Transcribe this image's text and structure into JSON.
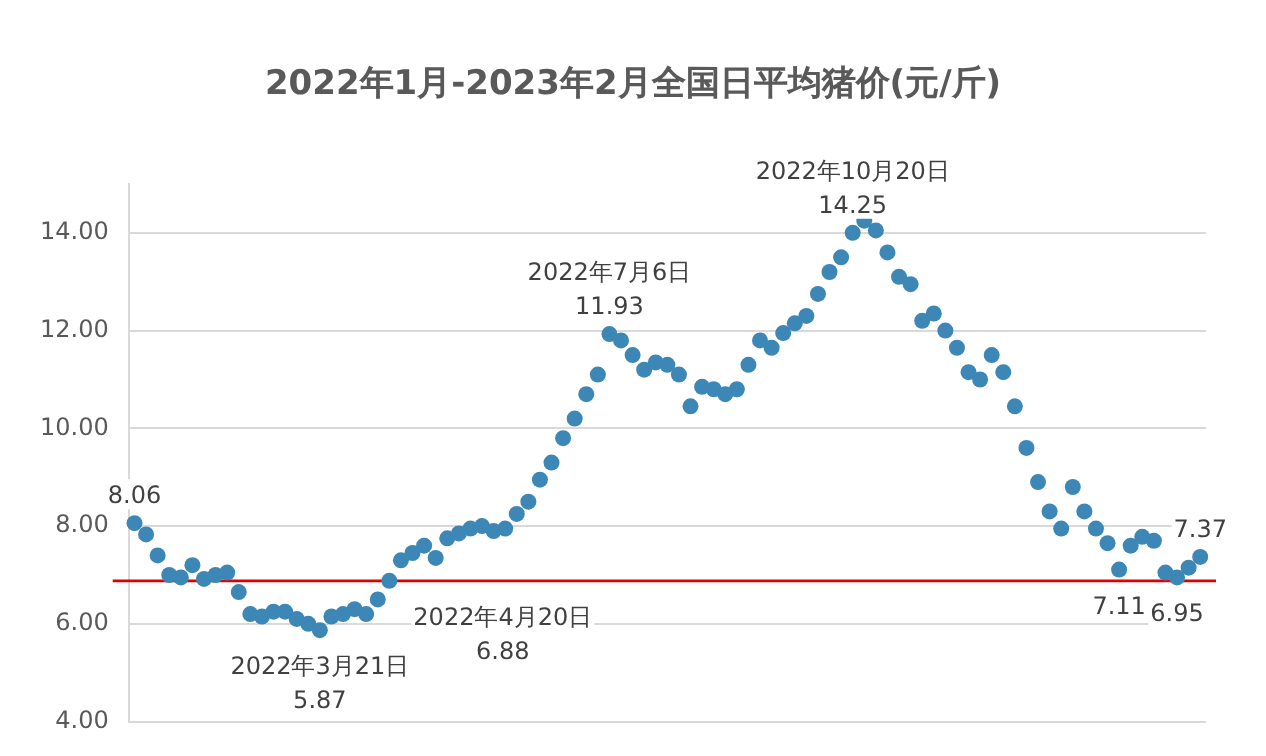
{
  "chart_data": {
    "type": "scatter",
    "title": "2022年1月-2023年2月全国日平均猪价(元/斤)",
    "categories": [
      null,
      null,
      null,
      null,
      null,
      null,
      null,
      null,
      null,
      null,
      null,
      null,
      null,
      null,
      null,
      null,
      null,
      null,
      null,
      null,
      null,
      null,
      null,
      null,
      null,
      null,
      null,
      null,
      null,
      null,
      null,
      null,
      null,
      null,
      null,
      null,
      null,
      null,
      null,
      null,
      null,
      null,
      null,
      null,
      null,
      null,
      null,
      null,
      null,
      null,
      null,
      null,
      null,
      null,
      null,
      null,
      null,
      null,
      null,
      null,
      null,
      null,
      null,
      null,
      null,
      null,
      null,
      null,
      null,
      null,
      null,
      null,
      null,
      null,
      null,
      null,
      null,
      null,
      null,
      null,
      null,
      null,
      null,
      null,
      null,
      null,
      null,
      null,
      null,
      null,
      null,
      null,
      null
    ],
    "series": [
      {
        "color": "#3d87b6",
        "values": [
          8.06,
          7.83,
          7.4,
          7.0,
          6.95,
          7.2,
          6.92,
          7.0,
          7.05,
          6.65,
          6.2,
          6.15,
          6.25,
          6.25,
          6.1,
          6.0,
          5.87,
          6.15,
          6.2,
          6.3,
          6.2,
          6.5,
          6.88,
          7.3,
          7.45,
          7.6,
          7.35,
          7.75,
          7.85,
          7.95,
          8.0,
          7.9,
          7.95,
          8.25,
          8.5,
          8.95,
          9.3,
          9.8,
          10.2,
          10.7,
          11.1,
          11.93,
          11.8,
          11.5,
          11.2,
          11.35,
          11.3,
          11.1,
          10.45,
          10.85,
          10.8,
          10.7,
          10.8,
          11.3,
          11.8,
          11.65,
          11.95,
          12.15,
          12.3,
          12.75,
          13.2,
          13.5,
          14.0,
          14.25,
          14.05,
          13.6,
          13.1,
          12.95,
          12.2,
          12.35,
          12.0,
          11.65,
          11.15,
          11.0,
          11.5,
          11.15,
          10.45,
          9.6,
          8.9,
          8.3,
          7.95,
          8.8,
          8.3,
          7.95,
          7.65,
          7.11,
          7.6,
          7.78,
          7.7,
          7.05,
          6.95,
          7.15,
          7.37
        ],
        "value_labels": [
          "8.06",
          null,
          null,
          null,
          null,
          null,
          null,
          null,
          null,
          null,
          null,
          null,
          null,
          null,
          null,
          null,
          "2022年3月21日\n5.87",
          null,
          null,
          null,
          null,
          null,
          "2022年4月20日\n6.88",
          null,
          null,
          null,
          null,
          null,
          null,
          null,
          null,
          null,
          null,
          null,
          null,
          null,
          null,
          null,
          null,
          null,
          null,
          "2022年7月6日\n11.93",
          null,
          null,
          null,
          null,
          null,
          null,
          null,
          null,
          null,
          null,
          null,
          null,
          null,
          null,
          null,
          null,
          null,
          null,
          null,
          null,
          "2022年10月20日\n14.25",
          null,
          null,
          null,
          null,
          null,
          null,
          null,
          null,
          null,
          null,
          null,
          null,
          null,
          null,
          null,
          null,
          null,
          null,
          null,
          null,
          null,
          null,
          "7.11",
          null,
          null,
          null,
          null,
          "6.95",
          null,
          "7.37"
        ]
      }
    ],
    "ylim": [
      4,
      15
    ],
    "yticks": [
      {
        "value": 4,
        "label": "4.00"
      },
      {
        "value": 6,
        "label": "6.00"
      },
      {
        "value": 8,
        "label": "8.00"
      },
      {
        "value": 10,
        "label": "10.00"
      },
      {
        "value": 12,
        "label": "12.00"
      },
      {
        "value": 14,
        "label": "14.00"
      }
    ],
    "grid": "y",
    "tick_labels": "y",
    "marker": "circle",
    "legend": false,
    "ref_lines": [
      {
        "axis": "y",
        "value": 6.88,
        "color": "#e00000"
      }
    ]
  }
}
